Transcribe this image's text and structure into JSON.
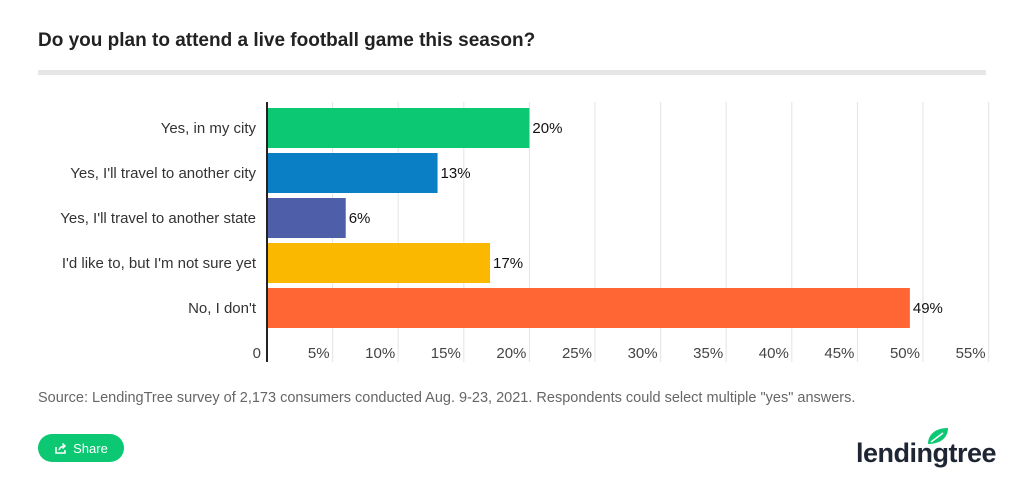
{
  "chart_data": {
    "type": "bar",
    "orientation": "horizontal",
    "title": "Do you plan to attend a live football game this season?",
    "categories": [
      "Yes, in my city",
      "Yes, I'll travel to another city",
      "Yes, I'll travel to another state",
      "I'd like to, but I'm not sure yet",
      "No, I don't"
    ],
    "values": [
      20,
      13,
      6,
      17,
      49
    ],
    "data_labels": [
      "20%",
      "13%",
      "6%",
      "17%",
      "49%"
    ],
    "colors": [
      "#0cc872",
      "#0a7fc6",
      "#4f5ea8",
      "#fbb800",
      "#ff6633"
    ],
    "xlim": [
      0,
      55
    ],
    "xticks": [
      0,
      5,
      10,
      15,
      20,
      25,
      30,
      35,
      40,
      45,
      50,
      55
    ],
    "xtick_labels": [
      "0",
      "5%",
      "10%",
      "15%",
      "20%",
      "25%",
      "30%",
      "35%",
      "40%",
      "45%",
      "50%",
      "55%"
    ],
    "grid": true,
    "source": "Source: LendingTree survey of 2,173 consumers conducted Aug. 9-23, 2021. Respondents could select multiple \"yes\" answers."
  },
  "share_label": "Share",
  "logo": {
    "text": "lendingtree",
    "color": "#1e2533",
    "leaf_color": "#0cc872"
  }
}
